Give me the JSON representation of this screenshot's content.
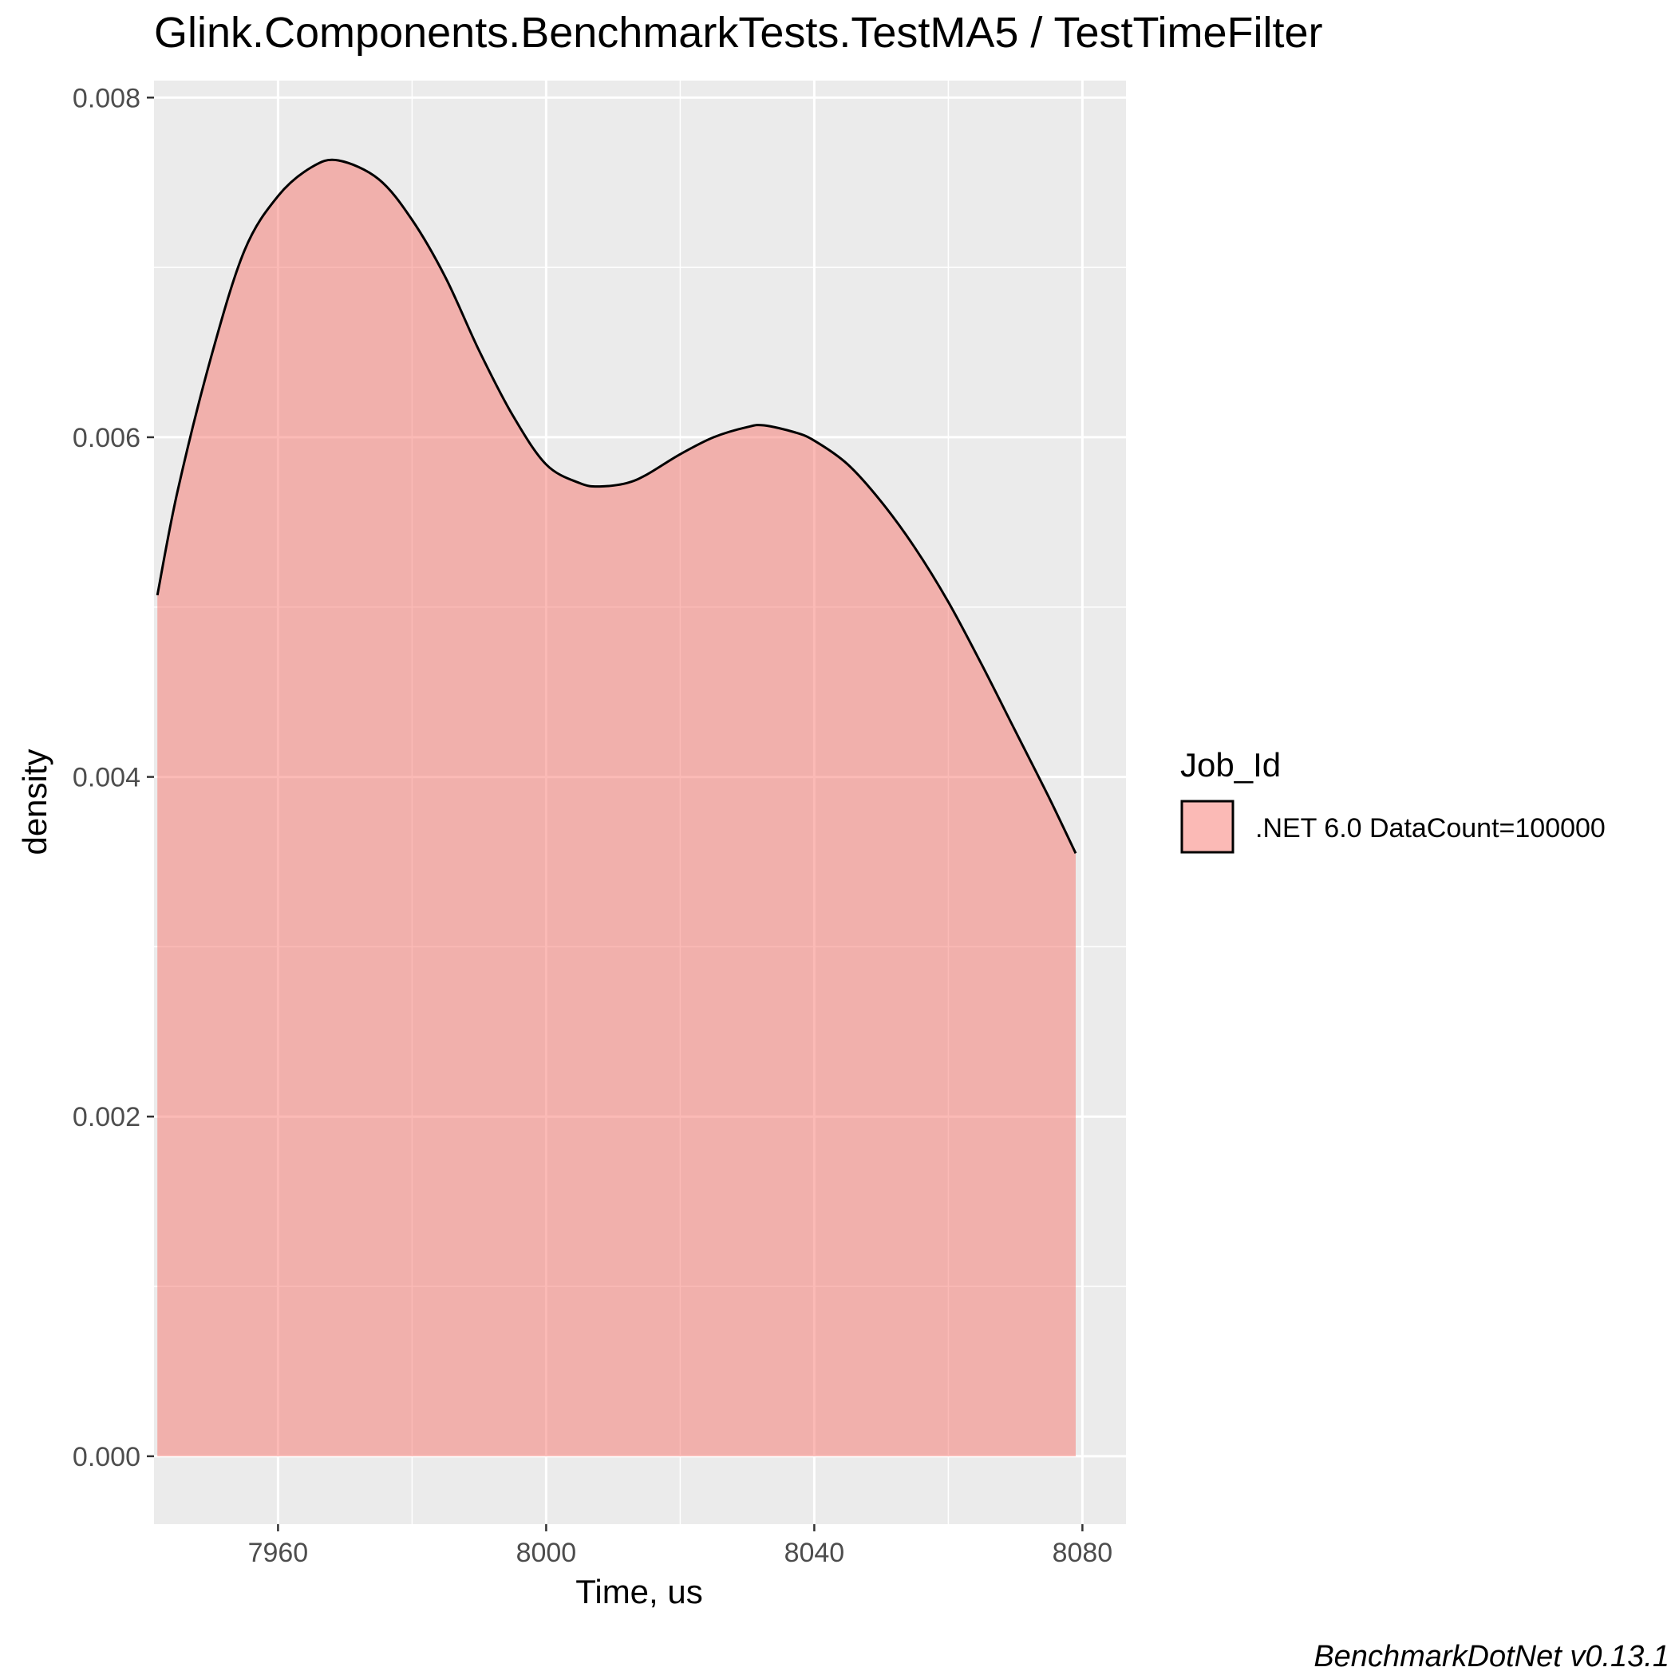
{
  "chart_data": {
    "type": "area",
    "title": "Glink.Components.BenchmarkTests.TestMA5 / TestTimeFilter",
    "xlabel": "Time, us",
    "ylabel": "density",
    "xlim": [
      7941.5,
      8086.5
    ],
    "ylim": [
      -0.0004,
      0.0081
    ],
    "xticks": [
      7960,
      8000,
      8040,
      8080
    ],
    "xtick_labels": [
      "7960",
      "8000",
      "8040",
      "8080"
    ],
    "yticks": [
      0.0,
      0.002,
      0.004,
      0.006,
      0.008
    ],
    "ytick_labels": [
      "0.000",
      "0.002",
      "0.004",
      "0.006",
      "0.008"
    ],
    "grid": true,
    "legend": {
      "title": "Job_Id",
      "position": "right",
      "entries": [
        ".NET 6.0 DataCount=100000"
      ]
    },
    "colors": {
      "fill": "#f8766d",
      "fill_opacity": 0.5,
      "line": "#000000",
      "panel": "#ebebeb",
      "grid": "#ffffff"
    },
    "series": [
      {
        "name": ".NET 6.0 DataCount=100000",
        "x": [
          7942,
          7945,
          7950,
          7955,
          7960,
          7965,
          7969,
          7975,
          7980,
          7985,
          7990,
          7995,
          8000,
          8005,
          8008,
          8012,
          8015,
          8020,
          8025,
          8030,
          8032.5,
          8037,
          8040,
          8045,
          8050,
          8055,
          8060,
          8065,
          8070,
          8075,
          8079
        ],
        "y": [
          0.00507,
          0.00568,
          0.00647,
          0.0071,
          0.00742,
          0.00759,
          0.00763,
          0.00752,
          0.00728,
          0.00694,
          0.00651,
          0.00613,
          0.00584,
          0.00573,
          0.00571,
          0.00573,
          0.00578,
          0.0059,
          0.006,
          0.00606,
          0.00607,
          0.00603,
          0.00598,
          0.00584,
          0.00562,
          0.00535,
          0.00503,
          0.00466,
          0.00427,
          0.00388,
          0.00355
        ]
      }
    ]
  },
  "caption": "BenchmarkDotNet v0.13.1"
}
